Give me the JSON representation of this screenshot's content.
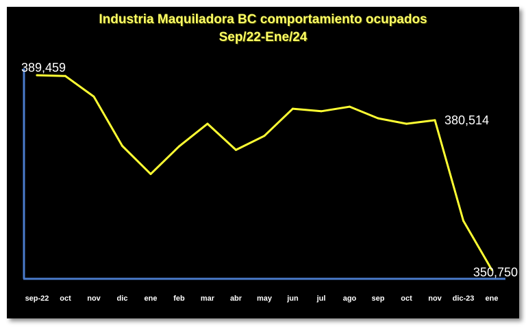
{
  "chart_data": {
    "type": "line",
    "title": "Industria Maquiladora BC comportamiento ocupados",
    "subtitle": "Sep/22-Ene/24",
    "xlabel": "",
    "ylabel": "",
    "categories": [
      "sep-22",
      "oct",
      "nov",
      "dic",
      "ene",
      "feb",
      "mar",
      "abr",
      "may",
      "jun",
      "jul",
      "ago",
      "sep",
      "oct",
      "nov",
      "dic-23",
      "ene"
    ],
    "series": [
      {
        "values": [
          389459,
          389300,
          385200,
          375400,
          369800,
          375300,
          379800,
          374600,
          377400,
          382800,
          382300,
          383200,
          380900,
          379800,
          380514,
          360500,
          350750
        ]
      }
    ],
    "data_labels": [
      {
        "index": 0,
        "text": "389,459"
      },
      {
        "index": 14,
        "text": "380,514"
      },
      {
        "index": 16,
        "text": "350,750"
      }
    ],
    "ylim": [
      350300,
      389750
    ],
    "grid": false,
    "legend": "none",
    "colors": {
      "line": "#ffff33",
      "axis": "#4a7ccc",
      "background": "#000000",
      "title": "#ffff66",
      "labels": "#ffffff"
    }
  }
}
